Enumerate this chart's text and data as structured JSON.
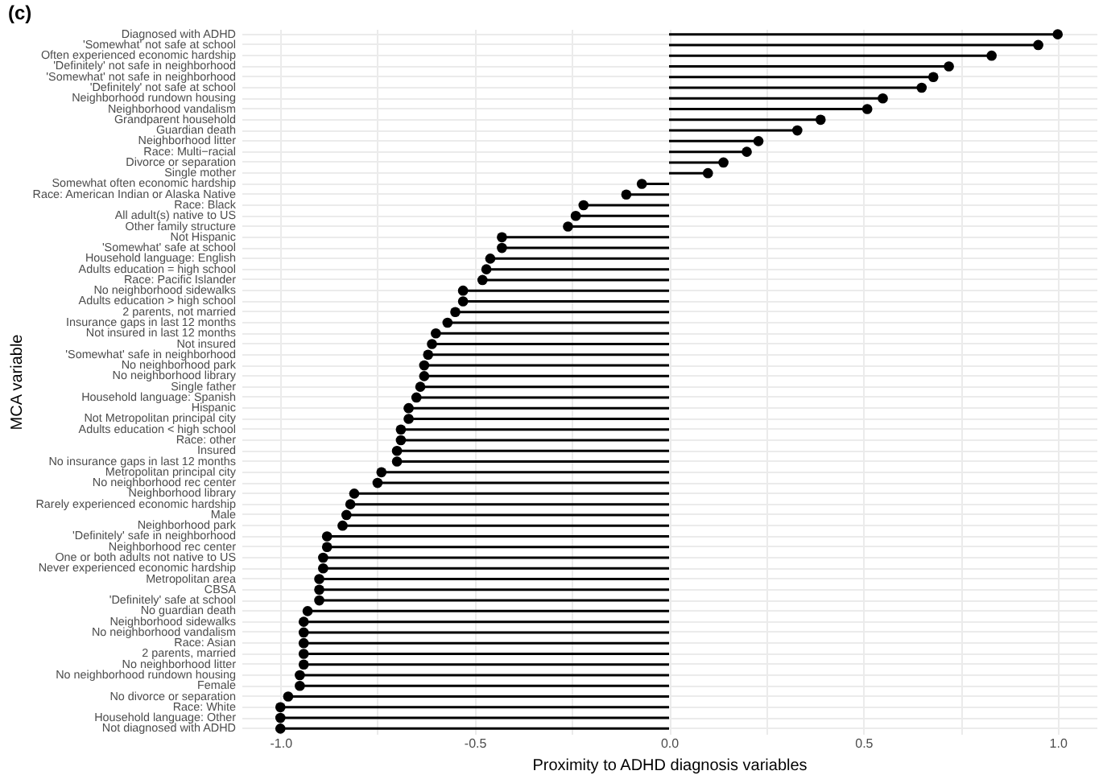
{
  "chart_data": {
    "type": "lollipop",
    "title": "(c)",
    "xlabel": "Proximity to ADHD diagnosis variables",
    "ylabel": "MCA variable",
    "categories": [
      "Diagnosed with ADHD",
      "'Somewhat' not safe at school",
      "Often experienced economic hardship",
      "'Definitely' not safe in neighborhood",
      "'Somewhat' not safe in neighborhood",
      "'Definitely' not safe at school",
      "Neighborhood rundown housing",
      "Neighborhood vandalism",
      "Grandparent household",
      "Guardian death",
      "Neighborhood litter",
      "Race: Multi−racial",
      "Divorce or separation",
      "Single mother",
      "Somewhat often economic hardship",
      "Race: American Indian or Alaska Native",
      "Race: Black",
      "All adult(s) native to US",
      "Other family structure",
      "Not Hispanic",
      "'Somewhat' safe at school",
      "Household language: English",
      "Adults education = high school",
      "Race: Pacific Islander",
      "No neighborhood sidewalks",
      "Adults education > high school",
      "2 parents, not married",
      "Insurance gaps in last 12 months",
      "Not insured in last 12 months",
      "Not insured",
      "'Somewhat' safe in neighborhood",
      "No neighborhood park",
      "No neighborhood library",
      "Single father",
      "Household language: Spanish",
      "Hispanic",
      "Not Metropolitan principal city",
      "Adults education < high school",
      "Race: other",
      "Insured",
      "No insurance gaps in last 12 months",
      "Metropolitan principal city",
      "No neighborhood rec center",
      "Neighborhood library",
      "Rarely experienced economic hardship",
      "Male",
      "Neighborhood park",
      "'Definitely' safe in neighborhood",
      "Neighborhood rec center",
      "One or both adults not native to US",
      "Never experienced economic hardship",
      "Metropolitan area",
      "CBSA",
      "'Definitely' safe at school",
      "No guardian death",
      "Neighborhood sidewalks",
      "No neighborhood vandalism",
      "Race: Asian",
      "2 parents, married",
      "No neighborhood litter",
      "No neighborhood rundown housing",
      "Female",
      "No divorce or separation",
      "Race: White",
      "Household language: Other",
      "Not diagnosed with ADHD"
    ],
    "values": [
      1.0,
      0.95,
      0.83,
      0.72,
      0.68,
      0.65,
      0.55,
      0.51,
      0.39,
      0.33,
      0.23,
      0.2,
      0.14,
      0.1,
      -0.07,
      -0.11,
      -0.22,
      -0.24,
      -0.26,
      -0.43,
      -0.43,
      -0.46,
      -0.47,
      -0.48,
      -0.53,
      -0.53,
      -0.55,
      -0.57,
      -0.6,
      -0.61,
      -0.62,
      -0.63,
      -0.63,
      -0.64,
      -0.65,
      -0.67,
      -0.67,
      -0.69,
      -0.69,
      -0.7,
      -0.7,
      -0.74,
      -0.75,
      -0.81,
      -0.82,
      -0.83,
      -0.84,
      -0.88,
      -0.88,
      -0.89,
      -0.89,
      -0.9,
      -0.9,
      -0.9,
      -0.93,
      -0.94,
      -0.94,
      -0.94,
      -0.94,
      -0.94,
      -0.95,
      -0.95,
      -0.98,
      -1.0,
      -1.0,
      -1.0
    ],
    "color": "#000000",
    "marker": "circle",
    "orientation": "horizontal",
    "xlim": [
      -1.1,
      1.1
    ],
    "xticks": [
      {
        "value": -1,
        "label": "-1.0"
      },
      {
        "value": -0.75,
        "label": null
      },
      {
        "value": -0.5,
        "label": "-0.5"
      },
      {
        "value": -0.25,
        "label": null
      },
      {
        "value": 0,
        "label": "0.0"
      },
      {
        "value": 0.25,
        "label": null
      },
      {
        "value": 0.5,
        "label": "0.5"
      },
      {
        "value": 0.75,
        "label": null
      },
      {
        "value": 1,
        "label": "1.0"
      }
    ],
    "grid": true
  }
}
